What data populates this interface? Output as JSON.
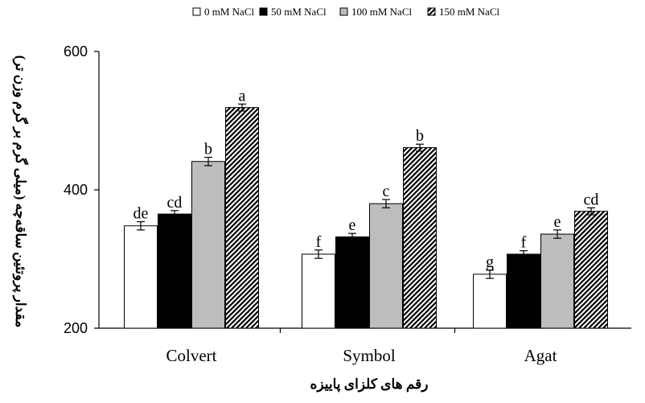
{
  "chart_data": {
    "type": "bar",
    "title": "",
    "xlabel": "رقم های کلزای پاییزه",
    "ylabel": "مقدار پروتئین ساقه‌چه (میلی گرم بر گرم وزن تر)",
    "categories": [
      "Colvert",
      "Symbol",
      "Agat"
    ],
    "ylim": [
      200,
      600
    ],
    "yticks": [
      "200",
      "400",
      "600"
    ],
    "grid": false,
    "legend_position": "top-center",
    "series": [
      {
        "name": "0 mM NaCl",
        "fill": "#ffffff",
        "pattern": "none",
        "values": [
          348,
          307,
          278
        ],
        "errors": [
          6,
          6,
          6
        ],
        "labels": [
          "de",
          "f",
          "g"
        ]
      },
      {
        "name": "50 mM NaCl",
        "fill": "#000000",
        "pattern": "none",
        "values": [
          365,
          332,
          307
        ],
        "errors": [
          5,
          5,
          5
        ],
        "labels": [
          "cd",
          "e",
          "f"
        ]
      },
      {
        "name": "100 mM NaCl",
        "fill": "#bdbdbd",
        "pattern": "none",
        "values": [
          441,
          380,
          336
        ],
        "errors": [
          6,
          6,
          6
        ],
        "labels": [
          "b",
          "c",
          "e"
        ]
      },
      {
        "name": "150 mM NaCl",
        "fill": "#ffffff",
        "pattern": "diagonal-hatch",
        "values": [
          519,
          461,
          369
        ],
        "errors": [
          5,
          5,
          5
        ],
        "labels": [
          "a",
          "b",
          "cd"
        ]
      }
    ]
  }
}
